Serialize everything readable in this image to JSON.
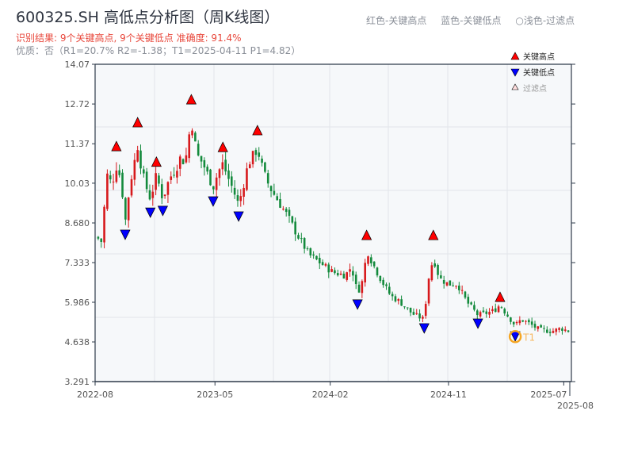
{
  "header": {
    "title": "600325.SH 高低点分析图（周K线图）",
    "result": "识别结果: 9个关键高点, 9个关键低点  准确度: 91.4%",
    "quality": "优质：否（R1=20.7%  R2=-1.38；T1=2025-04-11 P1=4.82）",
    "top_legend": [
      "红色-关键高点",
      "蓝色-关键低点",
      "○浅色-过滤点"
    ]
  },
  "chart_data": {
    "type": "candlestick",
    "title": "600325.SH 高低点分析图（周K线图）",
    "ylim": [
      3.291,
      14.07
    ],
    "yticks": [
      "14.07",
      "12.72",
      "11.37",
      "10.03",
      "8.680",
      "7.333",
      "5.986",
      "4.638",
      "3.291"
    ],
    "ytick_values": [
      14.07,
      12.72,
      11.37,
      10.03,
      8.68,
      7.333,
      5.986,
      4.638,
      3.291
    ],
    "xlim_weeks": [
      0,
      156
    ],
    "xticks": [
      {
        "label": "2022-08",
        "week": 0
      },
      {
        "label": "2023-05",
        "week": 39
      },
      {
        "label": "2024-02",
        "week": 77
      },
      {
        "label": "2024-11",
        "week": 116
      },
      {
        "label": "2025-07",
        "week": 154
      },
      {
        "label": "2025-08",
        "week": 156
      }
    ],
    "close_path": [
      [
        0,
        8.2
      ],
      [
        2,
        8.0
      ],
      [
        3,
        10.4
      ],
      [
        5,
        10.0
      ],
      [
        6.5,
        10.6
      ],
      [
        8,
        10.2
      ],
      [
        9.4,
        8.7
      ],
      [
        11,
        10.0
      ],
      [
        13.5,
        11.3
      ],
      [
        15,
        10.4
      ],
      [
        16,
        10.0
      ],
      [
        17.7,
        9.5
      ],
      [
        19.7,
        10.3
      ],
      [
        21.8,
        9.5
      ],
      [
        24,
        10.2
      ],
      [
        26,
        10.5
      ],
      [
        28,
        11.0
      ],
      [
        29,
        10.6
      ],
      [
        31.2,
        12.2
      ],
      [
        33,
        11.0
      ],
      [
        35,
        10.7
      ],
      [
        38.4,
        9.9
      ],
      [
        40,
        10.4
      ],
      [
        41.6,
        10.7
      ],
      [
        43,
        10.3
      ],
      [
        45,
        9.8
      ],
      [
        46.8,
        9.3
      ],
      [
        48,
        9.8
      ],
      [
        50,
        10.7
      ],
      [
        53,
        11.2
      ],
      [
        55,
        10.4
      ],
      [
        57,
        9.9
      ],
      [
        60,
        9.4
      ],
      [
        63,
        8.9
      ],
      [
        66,
        8.3
      ],
      [
        70,
        7.6
      ],
      [
        74,
        7.3
      ],
      [
        78,
        7.0
      ],
      [
        82,
        6.9
      ],
      [
        84,
        7.2
      ],
      [
        86,
        6.3
      ],
      [
        88,
        6.8
      ],
      [
        89,
        7.8
      ],
      [
        91,
        7.3
      ],
      [
        94,
        6.7
      ],
      [
        97,
        6.2
      ],
      [
        100,
        6.0
      ],
      [
        104,
        5.6
      ],
      [
        108,
        5.4
      ],
      [
        109,
        6.6
      ],
      [
        111,
        7.5
      ],
      [
        113,
        6.8
      ],
      [
        116,
        6.6
      ],
      [
        119,
        6.6
      ],
      [
        122,
        6.0
      ],
      [
        125.7,
        5.55
      ],
      [
        128,
        5.6
      ],
      [
        131,
        5.7
      ],
      [
        133,
        5.9
      ],
      [
        135,
        5.6
      ],
      [
        138,
        5.2
      ],
      [
        140,
        5.4
      ],
      [
        142,
        5.3
      ],
      [
        146,
        5.05
      ],
      [
        150,
        5.0
      ],
      [
        153,
        5.1
      ],
      [
        156,
        5.0
      ]
    ],
    "key_highs": [
      [
        6.5,
        11.13
      ],
      [
        13.5,
        11.94
      ],
      [
        19.7,
        10.6
      ],
      [
        31.2,
        12.72
      ],
      [
        41.6,
        11.1
      ],
      [
        53,
        11.67
      ],
      [
        89,
        8.11
      ],
      [
        111,
        8.11
      ],
      [
        133,
        6.01
      ]
    ],
    "key_lows": [
      [
        9.4,
        8.44
      ],
      [
        17.7,
        9.19
      ],
      [
        21.8,
        9.25
      ],
      [
        38.4,
        9.57
      ],
      [
        46.8,
        9.06
      ],
      [
        86,
        6.07
      ],
      [
        108,
        5.26
      ],
      [
        125.7,
        5.42
      ],
      [
        138,
        4.99
      ]
    ],
    "t1": {
      "label": "T1",
      "week": 138,
      "price": 4.82
    },
    "legend": [
      "关键高点",
      "关键低点",
      "过滤点"
    ],
    "colors": {
      "up": "#d7191c",
      "down": "#138a3c",
      "high": "#ff0000",
      "low": "#0000ff",
      "t1": "#f5a623"
    }
  }
}
